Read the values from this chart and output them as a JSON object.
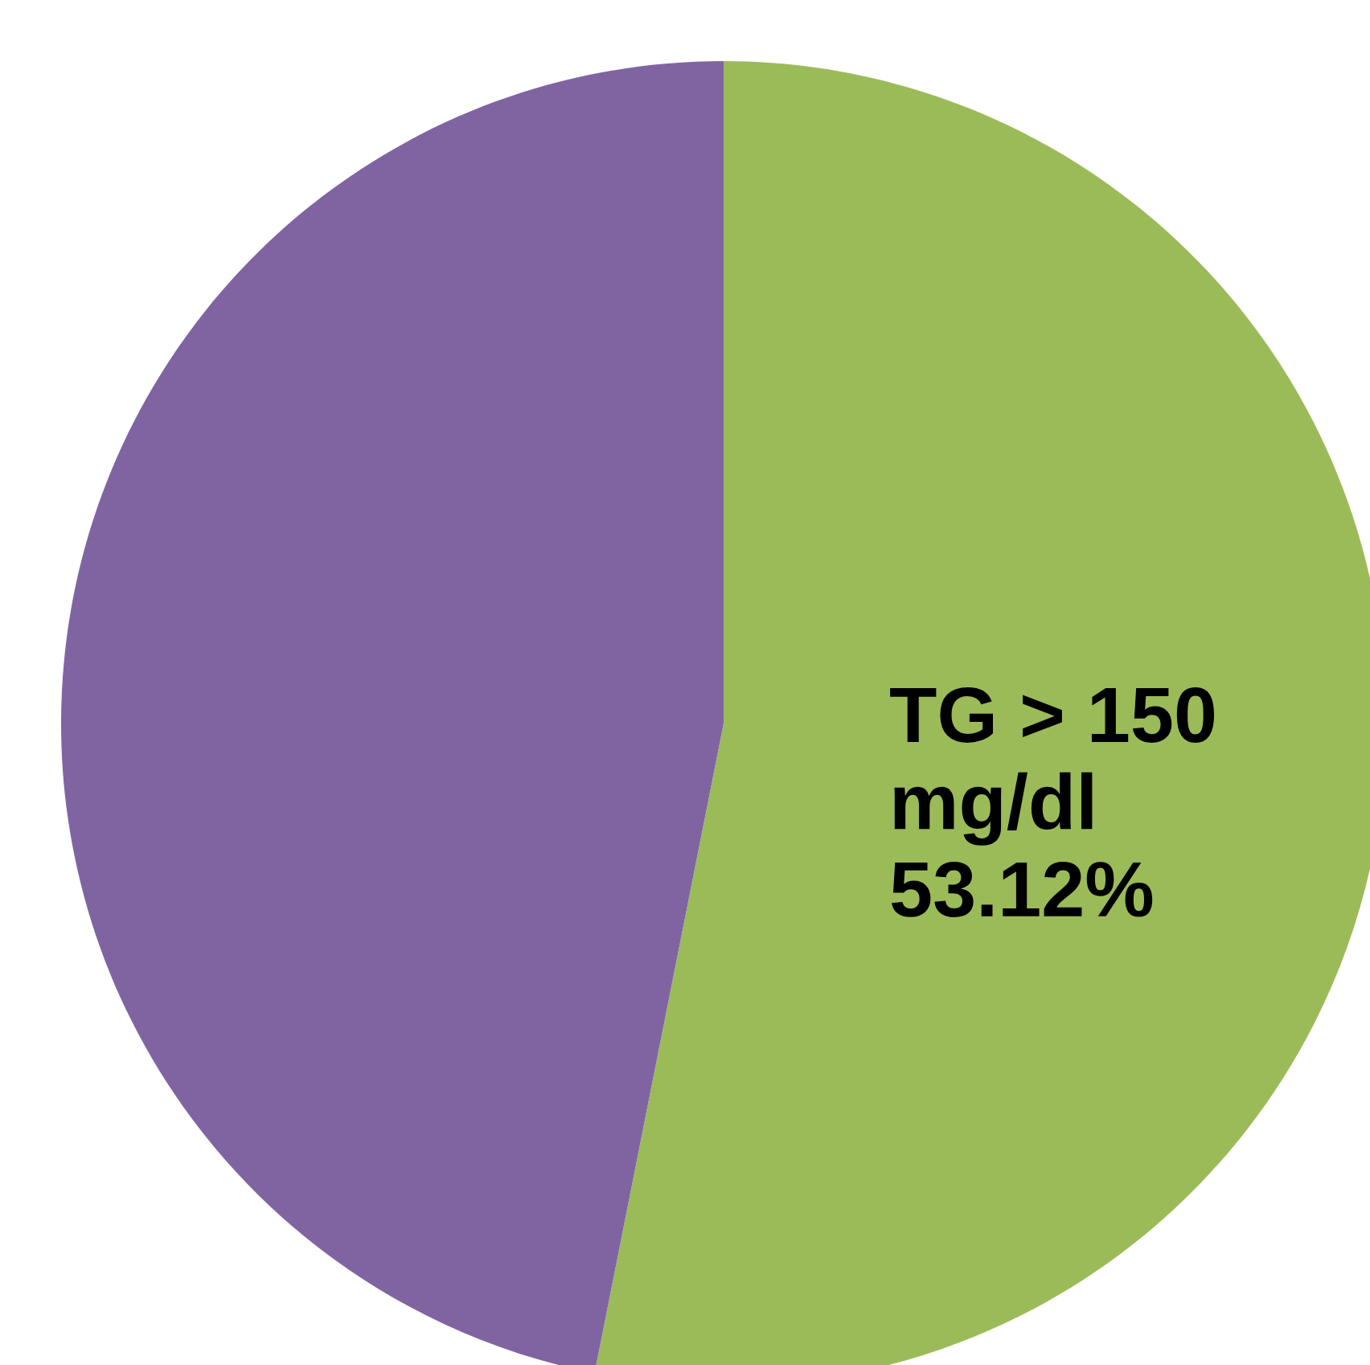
{
  "chart_data": {
    "type": "pie",
    "categories": [
      "TG > 150 mg/dl",
      null
    ],
    "values": [
      53.12,
      46.88
    ],
    "colors": [
      "#9bbb59",
      "#8064a2"
    ],
    "value_labels": [
      "53.12%",
      null
    ],
    "legend": false
  }
}
